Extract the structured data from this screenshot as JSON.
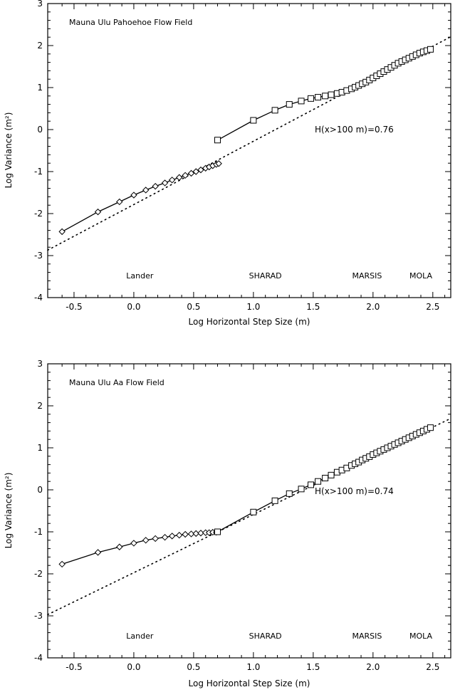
{
  "chart_data": [
    {
      "type": "line",
      "title": "Mauna Ulu Pahoehoe Flow Field",
      "xlabel": "Log Horizontal Step Size (m)",
      "ylabel": "Log Variance (m²)",
      "xlim": [
        -0.72,
        2.65
      ],
      "ylim": [
        -4,
        3
      ],
      "xticks": [
        "-0.5",
        "0.0",
        "0.5",
        "1.0",
        "1.5",
        "2.0",
        "2.5"
      ],
      "yticks": [
        "-4",
        "-3",
        "-2",
        "-1",
        "0",
        "1",
        "2",
        "3"
      ],
      "annotation": "H(x>100 m)=0.76",
      "instrument_labels": [
        {
          "text": "Lander",
          "x": 0.05
        },
        {
          "text": "SHARAD",
          "x": 1.1
        },
        {
          "text": "MARSIS",
          "x": 1.95
        },
        {
          "text": "MOLA",
          "x": 2.4
        }
      ],
      "series": [
        {
          "marker": "diamond",
          "x": [
            -0.6,
            -0.3,
            -0.12,
            0.0,
            0.1,
            0.18,
            0.26,
            0.32,
            0.38,
            0.43,
            0.48,
            0.52,
            0.56,
            0.6,
            0.63,
            0.66,
            0.69,
            0.71
          ],
          "y": [
            -2.43,
            -1.96,
            -1.72,
            -1.56,
            -1.44,
            -1.35,
            -1.27,
            -1.2,
            -1.14,
            -1.09,
            -1.04,
            -1.0,
            -0.96,
            -0.92,
            -0.89,
            -0.86,
            -0.83,
            -0.81
          ]
        },
        {
          "marker": "square",
          "x": [
            0.7,
            1.0,
            1.18,
            1.3,
            1.4,
            1.48,
            1.54,
            1.6,
            1.65,
            1.7,
            1.74,
            1.78,
            1.82,
            1.85,
            1.88,
            1.91,
            1.94,
            1.97,
            2.0,
            2.03,
            2.06,
            2.09,
            2.12,
            2.15,
            2.18,
            2.21,
            2.24,
            2.27,
            2.3,
            2.33,
            2.36,
            2.39,
            2.42,
            2.45,
            2.48
          ],
          "y": [
            -0.25,
            0.22,
            0.46,
            0.6,
            0.68,
            0.74,
            0.77,
            0.8,
            0.83,
            0.86,
            0.89,
            0.93,
            0.97,
            1.01,
            1.05,
            1.09,
            1.13,
            1.18,
            1.23,
            1.28,
            1.33,
            1.38,
            1.43,
            1.48,
            1.53,
            1.58,
            1.62,
            1.66,
            1.7,
            1.74,
            1.78,
            1.82,
            1.85,
            1.88,
            1.91
          ]
        }
      ],
      "fit": {
        "x": [
          -0.72,
          2.65
        ],
        "y": [
          -2.87,
          2.21
        ]
      }
    },
    {
      "type": "line",
      "title": "Mauna Ulu Aa Flow Field",
      "xlabel": "Log Horizontal Step Size (m)",
      "ylabel": "Log Variance (m²)",
      "xlim": [
        -0.72,
        2.65
      ],
      "ylim": [
        -4,
        3
      ],
      "xticks": [
        "-0.5",
        "0.0",
        "0.5",
        "1.0",
        "1.5",
        "2.0",
        "2.5"
      ],
      "yticks": [
        "-4",
        "-3",
        "-2",
        "-1",
        "0",
        "1",
        "2",
        "3"
      ],
      "annotation": "H(x>100 m)=0.74",
      "instrument_labels": [
        {
          "text": "Lander",
          "x": 0.05
        },
        {
          "text": "SHARAD",
          "x": 1.1
        },
        {
          "text": "MARSIS",
          "x": 1.95
        },
        {
          "text": "MOLA",
          "x": 2.4
        }
      ],
      "series": [
        {
          "marker": "diamond",
          "x": [
            -0.6,
            -0.3,
            -0.12,
            0.0,
            0.1,
            0.18,
            0.26,
            0.32,
            0.38,
            0.43,
            0.48,
            0.52,
            0.56,
            0.6,
            0.63,
            0.66,
            0.69
          ],
          "y": [
            -1.77,
            -1.49,
            -1.36,
            -1.27,
            -1.2,
            -1.16,
            -1.13,
            -1.1,
            -1.08,
            -1.06,
            -1.05,
            -1.04,
            -1.03,
            -1.02,
            -1.02,
            -1.01,
            -1.01
          ]
        },
        {
          "marker": "square",
          "x": [
            0.7,
            1.0,
            1.18,
            1.3,
            1.4,
            1.48,
            1.54,
            1.6,
            1.65,
            1.7,
            1.74,
            1.78,
            1.82,
            1.85,
            1.88,
            1.91,
            1.94,
            1.97,
            2.0,
            2.03,
            2.06,
            2.09,
            2.12,
            2.15,
            2.18,
            2.21,
            2.24,
            2.27,
            2.3,
            2.33,
            2.36,
            2.39,
            2.42,
            2.45,
            2.48
          ],
          "y": [
            -1.0,
            -0.53,
            -0.26,
            -0.09,
            0.02,
            0.12,
            0.2,
            0.28,
            0.35,
            0.42,
            0.47,
            0.52,
            0.58,
            0.62,
            0.66,
            0.71,
            0.75,
            0.79,
            0.84,
            0.88,
            0.92,
            0.96,
            1.0,
            1.04,
            1.08,
            1.12,
            1.16,
            1.2,
            1.24,
            1.28,
            1.32,
            1.36,
            1.4,
            1.44,
            1.48
          ]
        }
      ],
      "fit": {
        "x": [
          -0.72,
          2.65
        ],
        "y": [
          -2.97,
          1.7
        ]
      }
    }
  ]
}
